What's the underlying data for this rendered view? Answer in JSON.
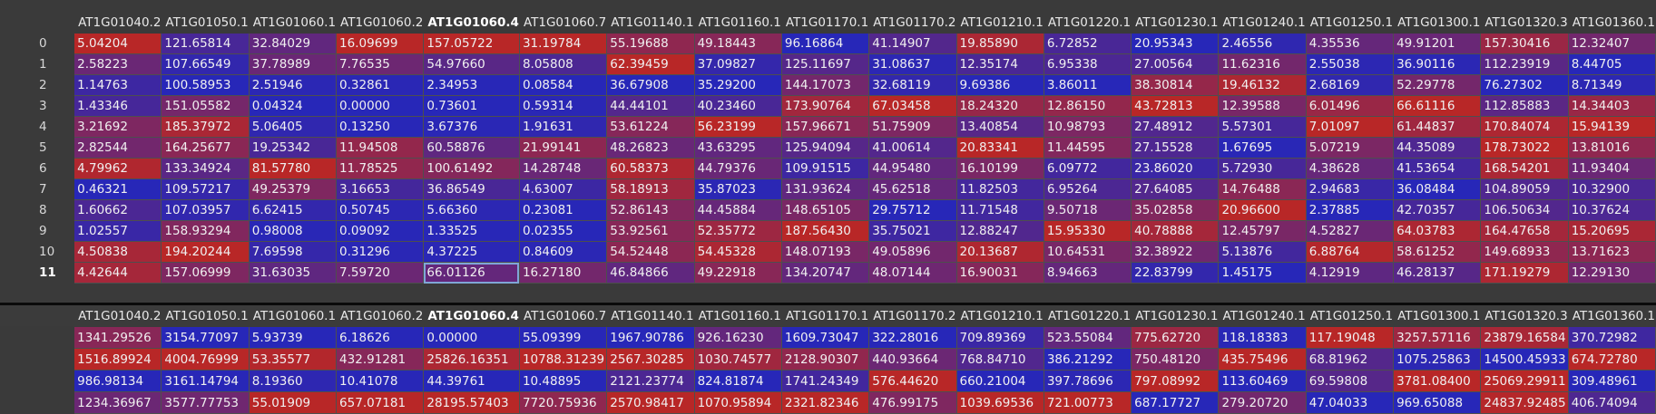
{
  "top_table": {
    "columns": [
      "AT1G01040.2",
      "AT1G01050.1",
      "AT1G01060.1",
      "AT1G01060.2",
      "AT1G01060.4",
      "AT1G01060.7",
      "AT1G01140.1",
      "AT1G01160.1",
      "AT1G01170.1",
      "AT1G01170.2",
      "AT1G01210.1",
      "AT1G01220.1",
      "AT1G01230.1",
      "AT1G01240.1",
      "AT1G01250.1",
      "AT1G01300.1",
      "AT1G01320.3",
      "AT1G01360.1"
    ],
    "active_column": 4,
    "active_row": 11,
    "selected_cell": [
      11,
      4
    ],
    "rows": [
      {
        "index": "0",
        "cells": [
          "5.04204",
          "121.65814",
          "32.84029",
          "16.09699",
          "157.05722",
          "31.19784",
          "55.19688",
          "49.18443",
          "96.16864",
          "41.14907",
          "19.85890",
          "6.72852",
          "20.95343",
          "2.46556",
          "4.35536",
          "49.91201",
          "157.30416",
          "12.32407"
        ]
      },
      {
        "index": "1",
        "cells": [
          "2.58223",
          "107.66549",
          "37.78989",
          "7.76535",
          "54.97660",
          "8.05808",
          "62.39459",
          "37.09827",
          "125.11697",
          "31.08637",
          "12.35174",
          "6.95338",
          "27.00564",
          "11.62316",
          "2.55038",
          "36.90116",
          "112.23919",
          "8.44705"
        ]
      },
      {
        "index": "2",
        "cells": [
          "1.14763",
          "100.58953",
          "2.51946",
          "0.32861",
          "2.34953",
          "0.08584",
          "36.67908",
          "35.29200",
          "144.17073",
          "32.68119",
          "9.69386",
          "3.86011",
          "38.30814",
          "19.46132",
          "2.68169",
          "52.29778",
          "76.27302",
          "8.71349"
        ]
      },
      {
        "index": "3",
        "cells": [
          "1.43346",
          "151.05582",
          "0.04324",
          "0.00000",
          "0.73601",
          "0.59314",
          "44.44101",
          "40.23460",
          "173.90764",
          "67.03458",
          "18.24320",
          "12.86150",
          "43.72813",
          "12.39588",
          "6.01496",
          "66.61116",
          "112.85883",
          "14.34403"
        ]
      },
      {
        "index": "4",
        "cells": [
          "3.21692",
          "185.37972",
          "5.06405",
          "0.13250",
          "3.67376",
          "1.91631",
          "53.61224",
          "56.23199",
          "157.96671",
          "51.75909",
          "13.40854",
          "10.98793",
          "27.48912",
          "5.57301",
          "7.01097",
          "61.44837",
          "170.84074",
          "15.94139"
        ]
      },
      {
        "index": "5",
        "cells": [
          "2.82544",
          "164.25677",
          "19.25342",
          "11.94508",
          "60.58876",
          "21.99141",
          "48.26823",
          "43.63295",
          "125.94094",
          "41.00614",
          "20.83341",
          "11.44595",
          "27.15528",
          "1.67695",
          "5.07219",
          "44.35089",
          "178.73022",
          "13.81016"
        ]
      },
      {
        "index": "6",
        "cells": [
          "4.79962",
          "133.34924",
          "81.57780",
          "11.78525",
          "100.61492",
          "14.28748",
          "60.58373",
          "44.79376",
          "109.91515",
          "44.95480",
          "16.10199",
          "6.09772",
          "23.86020",
          "5.72930",
          "4.38628",
          "41.53654",
          "168.54201",
          "11.93404"
        ]
      },
      {
        "index": "7",
        "cells": [
          "0.46321",
          "109.57217",
          "49.25379",
          "3.16653",
          "36.86549",
          "4.63007",
          "58.18913",
          "35.87023",
          "131.93624",
          "45.62518",
          "11.82503",
          "6.95264",
          "27.64085",
          "14.76488",
          "2.94683",
          "36.08484",
          "104.89059",
          "10.32900"
        ]
      },
      {
        "index": "8",
        "cells": [
          "1.60662",
          "107.03957",
          "6.62415",
          "0.50745",
          "5.66360",
          "0.23081",
          "52.86143",
          "44.45884",
          "148.65105",
          "29.75712",
          "11.71548",
          "9.50718",
          "35.02858",
          "20.96600",
          "2.37885",
          "42.70357",
          "106.50634",
          "10.37624"
        ]
      },
      {
        "index": "9",
        "cells": [
          "1.02557",
          "158.93294",
          "0.98008",
          "0.09092",
          "1.33525",
          "0.02355",
          "53.92561",
          "52.35772",
          "187.56430",
          "35.75021",
          "12.88247",
          "15.95330",
          "40.78888",
          "12.45797",
          "4.52827",
          "64.03783",
          "164.47658",
          "15.20695"
        ]
      },
      {
        "index": "10",
        "cells": [
          "4.50838",
          "194.20244",
          "7.69598",
          "0.31296",
          "4.37225",
          "0.84609",
          "54.52448",
          "54.45328",
          "148.07193",
          "49.05896",
          "20.13687",
          "10.64531",
          "32.38922",
          "5.13876",
          "6.88764",
          "58.61252",
          "149.68933",
          "13.71623"
        ]
      },
      {
        "index": "11",
        "cells": [
          "4.42644",
          "157.06999",
          "31.63035",
          "7.59720",
          "66.01126",
          "16.27180",
          "46.84866",
          "49.22918",
          "134.20747",
          "48.07144",
          "16.90031",
          "8.94663",
          "22.83799",
          "1.45175",
          "4.12919",
          "46.28137",
          "171.19279",
          "12.29130"
        ]
      }
    ]
  },
  "bottom_table": {
    "columns": [
      "AT1G01040.2",
      "AT1G01050.1",
      "AT1G01060.1",
      "AT1G01060.2",
      "AT1G01060.4",
      "AT1G01060.7",
      "AT1G01140.1",
      "AT1G01160.1",
      "AT1G01170.1",
      "AT1G01170.2",
      "AT1G01210.1",
      "AT1G01220.1",
      "AT1G01230.1",
      "AT1G01240.1",
      "AT1G01250.1",
      "AT1G01300.1",
      "AT1G01320.3",
      "AT1G01360.1"
    ],
    "active_column": 4,
    "rows": [
      {
        "cells": [
          "1341.29526",
          "3154.77097",
          "5.93739",
          "6.18626",
          "0.00000",
          "55.09399",
          "1967.90786",
          "926.16230",
          "1609.73047",
          "322.28016",
          "709.89369",
          "523.55084",
          "775.62720",
          "118.18383",
          "117.19048",
          "3257.57116",
          "23879.16584",
          "370.72982"
        ]
      },
      {
        "cells": [
          "1516.89924",
          "4004.76999",
          "53.35577",
          "432.91281",
          "25826.16351",
          "10788.31239",
          "2567.30285",
          "1030.74577",
          "2128.90307",
          "440.93664",
          "768.84710",
          "386.21292",
          "750.48120",
          "435.75496",
          "68.81962",
          "1075.25863",
          "14500.45933",
          "674.72780"
        ]
      },
      {
        "cells": [
          "986.98134",
          "3161.14794",
          "8.19360",
          "10.41078",
          "44.39761",
          "10.48895",
          "2121.23774",
          "824.81874",
          "1741.24349",
          "576.44620",
          "660.21004",
          "397.78696",
          "797.08992",
          "113.60469",
          "69.59808",
          "3781.08400",
          "25069.29911",
          "309.48961"
        ]
      },
      {
        "cells": [
          "1234.36967",
          "3577.77753",
          "55.01909",
          "657.07181",
          "28195.57403",
          "7720.75936",
          "2570.98417",
          "1070.95894",
          "2321.82346",
          "476.99175",
          "1039.69536",
          "721.00773",
          "687.17727",
          "279.20720",
          "47.04033",
          "969.65088",
          "24837.92485",
          "406.74094"
        ]
      }
    ]
  },
  "colors": {
    "background": "#3a3a3a",
    "heat_low": "#2727b8",
    "heat_high": "#b82727",
    "divider": "#0a0a0a",
    "selection_outline": "#7fa6d6"
  }
}
